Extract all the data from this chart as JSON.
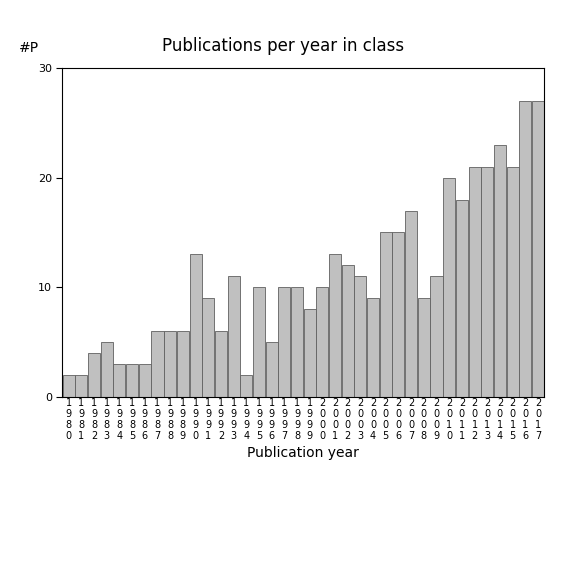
{
  "title": "Publications per year in class",
  "xlabel": "Publication year",
  "ylabel": "#P",
  "years": [
    "1980",
    "1981",
    "1982",
    "1983",
    "1984",
    "1985",
    "1986",
    "1987",
    "1988",
    "1989",
    "1990",
    "1991",
    "1992",
    "1993",
    "1994",
    "1995",
    "1996",
    "1997",
    "1998",
    "1999",
    "2000",
    "2001",
    "2002",
    "2003",
    "2004",
    "2005",
    "2006",
    "2007",
    "2008",
    "2009",
    "2010",
    "2011",
    "2012",
    "2013",
    "2014",
    "2015",
    "2016",
    "2017"
  ],
  "values": [
    2,
    2,
    4,
    5,
    3,
    3,
    3,
    6,
    6,
    6,
    13,
    9,
    6,
    11,
    2,
    10,
    5,
    10,
    10,
    8,
    10,
    13,
    12,
    11,
    9,
    15,
    15,
    17,
    9,
    11,
    20,
    18,
    21,
    21,
    23,
    21,
    27,
    27
  ],
  "bar_color": "#c0c0c0",
  "bar_edgecolor": "#606060",
  "ylim": [
    0,
    30
  ],
  "yticks": [
    0,
    10,
    20,
    30
  ],
  "background_color": "#ffffff",
  "title_fontsize": 12,
  "label_fontsize": 10,
  "tick_fontsize": 8
}
